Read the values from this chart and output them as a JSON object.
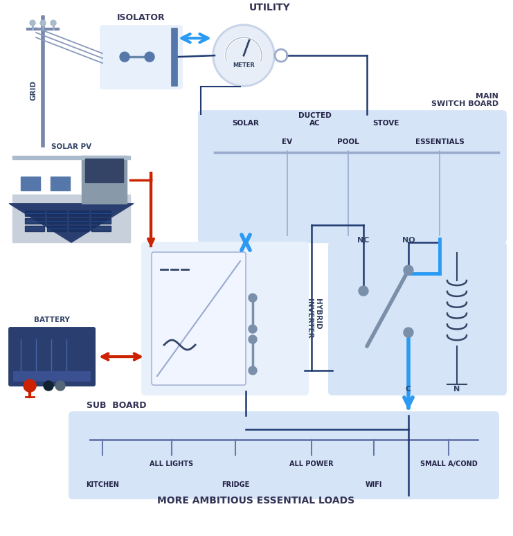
{
  "bg_color": "#ffffff",
  "box_blue_light": "#d6e4f7",
  "box_blue_lighter": "#e8f0fb",
  "box_blue_mid": "#b8ccec",
  "arrow_blue": "#2b9af3",
  "dark_blue_line": "#1e3a70",
  "red_arrow": "#cc2200",
  "gray_wire": "#8899bb",
  "relay_gray": "#7a8faa",
  "coil_color": "#334466",
  "title": "MORE AMBITIOUS ESSENTIAL LOADS",
  "main_board_label": "MAIN\nSWITCH BOARD",
  "sub_board_label": "SUB  BOARD",
  "grid_label": "GRID",
  "solar_pv_label": "SOLAR PV",
  "battery_label": "BATTERY",
  "isolator_label": "ISOLATOR",
  "utility_label": "UTILITY",
  "nc_label": "NC",
  "no_label": "NO",
  "c_label": "C",
  "n_label": "N",
  "meter_label": "METER"
}
